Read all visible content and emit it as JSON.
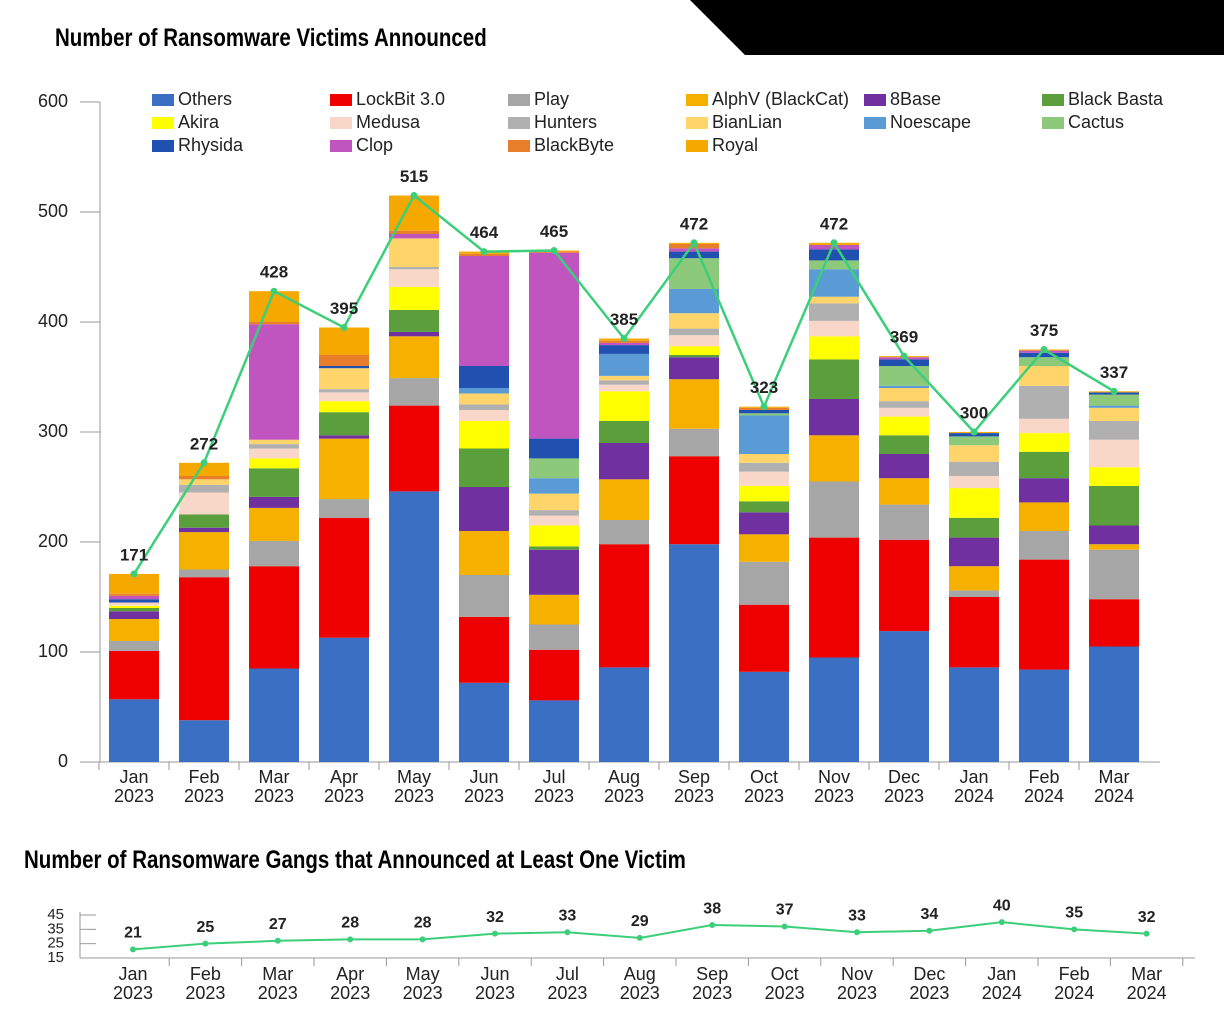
{
  "chart_data": [
    {
      "type": "bar",
      "stacked": true,
      "title": "Number of Ransomware Victims Announced",
      "categories": [
        "Jan 2023",
        "Feb 2023",
        "Mar 2023",
        "Apr 2023",
        "May 2023",
        "Jun 2023",
        "Jul 2023",
        "Aug 2023",
        "Sep 2023",
        "Oct 2023",
        "Nov 2023",
        "Dec 2023",
        "Jan 2024",
        "Feb 2024",
        "Mar 2024"
      ],
      "ylim": [
        0,
        600
      ],
      "yticks": [
        0,
        100,
        200,
        300,
        400,
        500,
        600
      ],
      "series": [
        {
          "name": "Others",
          "color": "#3a6fc4",
          "values": [
            57,
            38,
            85,
            113,
            246,
            72,
            56,
            86,
            198,
            82,
            95,
            119,
            86,
            84,
            105
          ]
        },
        {
          "name": "LockBit 3.0",
          "color": "#ee0000",
          "values": [
            44,
            130,
            93,
            109,
            78,
            60,
            46,
            112,
            80,
            61,
            109,
            83,
            64,
            100,
            43
          ]
        },
        {
          "name": "Play",
          "color": "#a6a6a6",
          "values": [
            9,
            7,
            23,
            17,
            25,
            38,
            23,
            22,
            25,
            39,
            51,
            32,
            6,
            26,
            45
          ]
        },
        {
          "name": "AlphV (BlackCat)",
          "color": "#f5b000",
          "values": [
            20,
            34,
            30,
            55,
            38,
            40,
            27,
            37,
            45,
            25,
            42,
            24,
            22,
            26,
            5
          ]
        },
        {
          "name": "8Base",
          "color": "#7030a0",
          "values": [
            7,
            4,
            10,
            3,
            4,
            40,
            41,
            33,
            20,
            20,
            33,
            22,
            26,
            22,
            17
          ]
        },
        {
          "name": "Black Basta",
          "color": "#5b9e3c",
          "values": [
            3,
            12,
            26,
            21,
            20,
            35,
            3,
            20,
            2,
            10,
            36,
            17,
            18,
            24,
            36
          ]
        },
        {
          "name": "Akira",
          "color": "#ffff00",
          "values": [
            2,
            0,
            9,
            10,
            21,
            25,
            19,
            27,
            8,
            14,
            21,
            17,
            27,
            17,
            17
          ]
        },
        {
          "name": "Medusa",
          "color": "#f8d7c8",
          "values": [
            3,
            20,
            9,
            8,
            16,
            10,
            9,
            6,
            10,
            13,
            14,
            8,
            11,
            13,
            25
          ]
        },
        {
          "name": "Hunters",
          "color": "#b0b0b0",
          "values": [
            0,
            7,
            4,
            3,
            2,
            5,
            5,
            4,
            6,
            8,
            16,
            6,
            13,
            30,
            17
          ]
        },
        {
          "name": "BianLian",
          "color": "#ffd56b",
          "values": [
            0,
            5,
            4,
            19,
            26,
            10,
            15,
            4,
            14,
            8,
            6,
            12,
            15,
            18,
            12
          ]
        },
        {
          "name": "Noescape",
          "color": "#5b9bd5",
          "values": [
            0,
            0,
            0,
            0,
            0,
            5,
            14,
            20,
            22,
            35,
            25,
            2,
            0,
            0,
            2
          ]
        },
        {
          "name": "Cactus",
          "color": "#8cc97a",
          "values": [
            0,
            0,
            0,
            0,
            0,
            0,
            18,
            0,
            28,
            2,
            8,
            18,
            8,
            8,
            10
          ]
        },
        {
          "name": "Rhysida",
          "color": "#2050b0",
          "values": [
            3,
            0,
            0,
            2,
            0,
            20,
            18,
            8,
            6,
            3,
            10,
            6,
            3,
            4,
            2
          ]
        },
        {
          "name": "Clop",
          "color": "#c055c0",
          "values": [
            3,
            0,
            105,
            0,
            4,
            100,
            169,
            2,
            3,
            0,
            4,
            2,
            0,
            2,
            0
          ]
        },
        {
          "name": "BlackByte",
          "color": "#e87d2a",
          "values": [
            2,
            3,
            2,
            10,
            3,
            2,
            1,
            2,
            4,
            2,
            0,
            0,
            0,
            0,
            0
          ]
        },
        {
          "name": "Royal",
          "color": "#f5a800",
          "values": [
            18,
            12,
            28,
            25,
            32,
            2,
            1,
            2,
            1,
            1,
            2,
            1,
            1,
            1,
            1
          ]
        }
      ],
      "totals": {
        "color": "#3ccf7a",
        "values": [
          171,
          272,
          428,
          395,
          515,
          464,
          465,
          385,
          472,
          323,
          472,
          369,
          300,
          375,
          337
        ]
      }
    },
    {
      "type": "line",
      "title": "Number of Ransomware Gangs that Announced at Least One Victim",
      "categories": [
        "Jan 2023",
        "Feb 2023",
        "Mar 2023",
        "Apr 2023",
        "May 2023",
        "Jun 2023",
        "Jul 2023",
        "Aug 2023",
        "Sep 2023",
        "Oct 2023",
        "Nov 2023",
        "Dec 2023",
        "Jan 2024",
        "Feb 2024",
        "Mar 2024"
      ],
      "ylim": [
        15,
        45
      ],
      "yticks": [
        15,
        25,
        35,
        45
      ],
      "color": "#3ccf7a",
      "values": [
        21,
        25,
        27,
        28,
        28,
        32,
        33,
        29,
        38,
        37,
        33,
        34,
        40,
        35,
        32
      ]
    }
  ]
}
